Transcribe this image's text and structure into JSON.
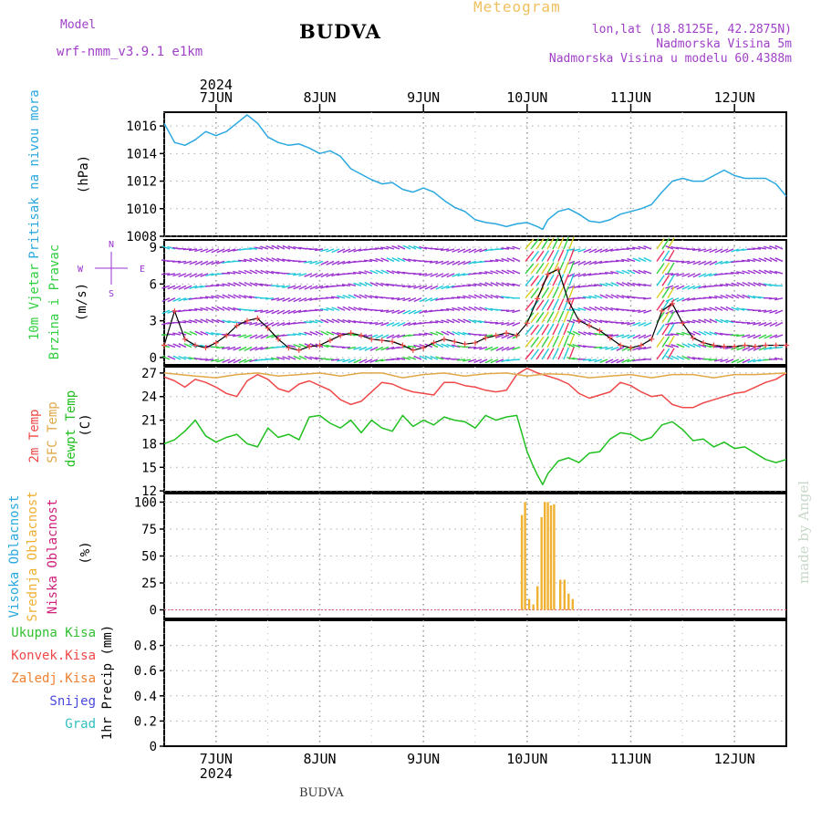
{
  "header": {
    "model_label": "Model",
    "model_name": "wrf-nmm_v3.9.1  e1km",
    "title": "BUDVA",
    "subtitle": "Meteogram",
    "location": "lon,lat (18.8125E, 42.2875N)",
    "altitude": "Nadmorska Visina 5m",
    "model_altitude": "Nadmorska Visina u modelu 60.4388m",
    "footer_title": "BUDVA",
    "credit": "made by Angel"
  },
  "colors": {
    "pressure": "#29a8e0",
    "temp2m": "#f04848",
    "sfc_temp": "#e0a848",
    "dewpoint": "#20c020",
    "cloud_bar": "#f0b030",
    "wind_purple": "#9a30d0",
    "wind_cyan": "#20c8d8",
    "wind_green": "#30d040",
    "wind_yellow": "#d8d020",
    "wind_red": "#f03060",
    "wind_line": "#000000",
    "gust_marker": "#f04848"
  },
  "chart_data": [
    {
      "type": "line",
      "panel": "pressure",
      "ylabel_lines": [
        "Pritisak na nivou mora",
        "(hPa)"
      ],
      "ylim": [
        1008,
        1017
      ],
      "yticks": [
        1008,
        1010,
        1012,
        1014,
        1016
      ],
      "xticks": [
        "7JUN",
        "8JUN",
        "9JUN",
        "10JUN",
        "11JUN",
        "12JUN"
      ],
      "xticks_year": "2024",
      "grid": true,
      "series": [
        {
          "x": [
            6.5,
            6.55,
            6.6,
            6.7,
            6.8,
            6.9,
            7.0,
            7.1,
            7.2,
            7.3,
            7.4,
            7.5,
            7.6,
            7.7,
            7.8,
            7.9,
            8.0,
            8.1,
            8.2,
            8.3,
            8.4,
            8.5,
            8.6,
            8.7,
            8.8,
            8.9,
            9.0,
            9.1,
            9.2,
            9.3,
            9.4,
            9.5,
            9.6,
            9.7,
            9.8,
            9.9,
            10.0,
            10.1,
            10.15,
            10.2,
            10.3,
            10.4,
            10.5,
            10.6,
            10.7,
            10.8,
            10.9,
            11.0,
            11.1,
            11.2,
            11.3,
            11.4,
            11.5,
            11.6,
            11.7,
            11.8,
            11.9,
            12.0,
            12.1,
            12.2,
            12.3,
            12.4,
            12.5
          ],
          "values": [
            1016.2,
            1015.5,
            1014.8,
            1014.6,
            1015.0,
            1015.6,
            1015.3,
            1015.6,
            1016.2,
            1016.8,
            1016.2,
            1015.2,
            1014.8,
            1014.6,
            1014.7,
            1014.4,
            1014.0,
            1014.2,
            1013.8,
            1012.9,
            1012.5,
            1012.1,
            1011.8,
            1011.9,
            1011.4,
            1011.2,
            1011.5,
            1011.2,
            1010.6,
            1010.1,
            1009.8,
            1009.2,
            1009.0,
            1008.9,
            1008.7,
            1008.9,
            1009.0,
            1008.7,
            1008.5,
            1009.2,
            1009.8,
            1010.0,
            1009.6,
            1009.1,
            1009.0,
            1009.2,
            1009.6,
            1009.8,
            1010.0,
            1010.3,
            1011.2,
            1012.0,
            1012.2,
            1012.0,
            1012.0,
            1012.4,
            1012.8,
            1012.4,
            1012.2,
            1012.2,
            1012.2,
            1011.8,
            1010.9
          ]
        }
      ]
    },
    {
      "type": "line",
      "panel": "wind",
      "ylabel_lines": [
        "10m Vjetar",
        "Brzina i Pravac",
        "(m/s)"
      ],
      "compass": {
        "n": "N",
        "s": "S",
        "w": "W",
        "e": "E"
      },
      "ylim": [
        0,
        9.5
      ],
      "yticks": [
        0,
        3,
        6,
        9
      ],
      "grid": true,
      "series": [
        {
          "name": "speed",
          "x": [
            6.5,
            6.6,
            6.7,
            6.8,
            6.9,
            7.0,
            7.1,
            7.2,
            7.3,
            7.4,
            7.5,
            7.6,
            7.7,
            7.8,
            7.9,
            8.0,
            8.1,
            8.2,
            8.3,
            8.4,
            8.5,
            8.6,
            8.7,
            8.8,
            8.9,
            9.0,
            9.1,
            9.2,
            9.3,
            9.4,
            9.5,
            9.6,
            9.7,
            9.8,
            9.9,
            10.0,
            10.1,
            10.2,
            10.3,
            10.4,
            10.5,
            10.6,
            10.7,
            10.8,
            10.9,
            11.0,
            11.1,
            11.2,
            11.3,
            11.4,
            11.5,
            11.6,
            11.7,
            11.8,
            11.9,
            12.0,
            12.1,
            12.2,
            12.3,
            12.4,
            12.5
          ],
          "values": [
            1.0,
            3.8,
            1.5,
            1.0,
            0.8,
            1.2,
            1.8,
            2.6,
            3.0,
            3.2,
            2.4,
            1.5,
            0.8,
            0.6,
            0.9,
            1.0,
            1.4,
            1.8,
            2.0,
            1.8,
            1.5,
            1.4,
            1.3,
            1.0,
            0.6,
            0.8,
            1.2,
            1.5,
            1.3,
            1.1,
            1.2,
            1.6,
            1.8,
            2.0,
            1.8,
            2.8,
            4.8,
            6.8,
            7.2,
            4.6,
            3.0,
            2.6,
            2.2,
            1.6,
            1.0,
            0.8,
            1.0,
            1.5,
            3.8,
            4.4,
            2.8,
            1.6,
            1.2,
            1.0,
            0.9,
            0.9,
            1.0,
            0.9,
            1.0,
            1.0,
            1.0
          ]
        }
      ]
    },
    {
      "type": "line",
      "panel": "temperature",
      "ylabel_lines": [
        "2m Temp",
        "SFC Temp",
        "dewpt Temp",
        "(C)"
      ],
      "ylim": [
        12,
        27.5
      ],
      "yticks": [
        12,
        15,
        18,
        21,
        24,
        27
      ],
      "grid": true,
      "series": [
        {
          "name": "2m Temp",
          "x": [
            6.5,
            6.6,
            6.7,
            6.8,
            6.9,
            7.0,
            7.1,
            7.2,
            7.3,
            7.4,
            7.5,
            7.6,
            7.7,
            7.8,
            7.9,
            8.0,
            8.1,
            8.2,
            8.3,
            8.4,
            8.5,
            8.6,
            8.7,
            8.8,
            8.9,
            9.0,
            9.1,
            9.2,
            9.3,
            9.4,
            9.5,
            9.6,
            9.7,
            9.8,
            9.9,
            10.0,
            10.1,
            10.2,
            10.3,
            10.4,
            10.5,
            10.6,
            10.7,
            10.8,
            10.9,
            11.0,
            11.1,
            11.2,
            11.3,
            11.4,
            11.5,
            11.6,
            11.7,
            11.8,
            11.9,
            12.0,
            12.1,
            12.2,
            12.3,
            12.4,
            12.5
          ],
          "values": [
            26.5,
            26.0,
            25.2,
            26.2,
            25.8,
            25.2,
            24.4,
            24.0,
            26.0,
            26.8,
            26.2,
            25.0,
            24.6,
            25.6,
            26.0,
            25.4,
            24.8,
            23.6,
            23.0,
            23.4,
            24.6,
            25.8,
            25.6,
            25.0,
            24.6,
            24.4,
            24.2,
            25.8,
            25.8,
            25.4,
            25.2,
            24.8,
            24.6,
            24.8,
            26.8,
            27.6,
            27.0,
            26.6,
            26.2,
            25.6,
            24.4,
            23.8,
            24.2,
            24.6,
            25.8,
            25.4,
            24.6,
            24.0,
            24.2,
            23.0,
            22.6,
            22.6,
            23.2,
            23.6,
            24.0,
            24.4,
            24.6,
            25.2,
            25.8,
            26.2,
            27.0
          ]
        },
        {
          "name": "SFC Temp",
          "x": [
            6.5,
            6.8,
            7.0,
            7.2,
            7.4,
            7.6,
            7.8,
            8.0,
            8.2,
            8.4,
            8.6,
            8.8,
            9.0,
            9.2,
            9.4,
            9.6,
            9.8,
            10.0,
            10.2,
            10.4,
            10.6,
            10.8,
            11.0,
            11.2,
            11.4,
            11.6,
            11.8,
            12.0,
            12.2,
            12.5
          ],
          "values": [
            27.0,
            26.6,
            26.4,
            26.8,
            27.0,
            26.6,
            26.8,
            27.0,
            26.6,
            27.0,
            27.0,
            26.4,
            26.8,
            27.0,
            26.6,
            26.9,
            27.0,
            26.6,
            26.9,
            26.8,
            26.4,
            26.6,
            26.8,
            26.4,
            26.8,
            26.8,
            26.4,
            26.8,
            26.8,
            27.0
          ]
        },
        {
          "name": "dewpt Temp",
          "x": [
            6.5,
            6.6,
            6.7,
            6.8,
            6.9,
            7.0,
            7.1,
            7.2,
            7.3,
            7.4,
            7.5,
            7.6,
            7.7,
            7.8,
            7.9,
            8.0,
            8.1,
            8.2,
            8.3,
            8.4,
            8.5,
            8.6,
            8.7,
            8.8,
            8.9,
            9.0,
            9.1,
            9.2,
            9.3,
            9.4,
            9.5,
            9.6,
            9.7,
            9.8,
            9.9,
            10.0,
            10.05,
            10.1,
            10.15,
            10.2,
            10.3,
            10.4,
            10.5,
            10.6,
            10.7,
            10.8,
            10.9,
            11.0,
            11.1,
            11.2,
            11.3,
            11.4,
            11.5,
            11.6,
            11.7,
            11.8,
            11.9,
            12.0,
            12.1,
            12.2,
            12.3,
            12.4,
            12.5
          ],
          "values": [
            18.0,
            18.5,
            19.6,
            21.0,
            19.0,
            18.2,
            18.8,
            19.2,
            18.0,
            17.6,
            20.0,
            18.8,
            19.2,
            18.5,
            21.4,
            21.6,
            20.6,
            20.0,
            21.0,
            19.4,
            21.0,
            20.0,
            19.6,
            21.6,
            20.2,
            21.0,
            20.4,
            21.4,
            21.0,
            20.8,
            20.0,
            21.6,
            21.0,
            21.4,
            21.6,
            17.0,
            15.4,
            14.0,
            12.8,
            14.2,
            15.8,
            16.2,
            15.6,
            16.8,
            17.0,
            18.6,
            19.4,
            19.2,
            18.4,
            18.8,
            20.4,
            20.8,
            19.8,
            18.4,
            18.6,
            17.6,
            18.2,
            17.4,
            17.6,
            16.8,
            16.0,
            15.6,
            16.0
          ]
        }
      ]
    },
    {
      "type": "bar",
      "panel": "clouds",
      "ylabel_lines": [
        "Visoka Oblacnost",
        "Srednja Oblacnost",
        "Niska Oblacnost",
        "(%)"
      ],
      "ylim": [
        -8,
        108
      ],
      "yticks": [
        0,
        25,
        50,
        75,
        100
      ],
      "grid": true,
      "series": [
        {
          "name": "Srednja Oblacnost",
          "x": [
            9.95,
            9.98,
            10.02,
            10.06,
            10.1,
            10.14,
            10.17,
            10.2,
            10.23,
            10.26,
            10.32,
            10.36,
            10.4,
            10.44
          ],
          "values": [
            88,
            100,
            10,
            5,
            22,
            86,
            100,
            100,
            97,
            98,
            28,
            28,
            15,
            10
          ]
        }
      ]
    },
    {
      "type": "line",
      "panel": "precipitation",
      "ylabel_lines": [
        "1hr Precip (mm)"
      ],
      "legend": [
        "Ukupna Kisa",
        "Konvek.Kisa",
        "Zaledj.Kisa",
        "Snijeg",
        "Grad"
      ],
      "ylim": [
        0,
        1
      ],
      "yticks": [
        "0",
        "0.2",
        "0.4",
        "0.6",
        "0.8"
      ],
      "xticks": [
        "7JUN",
        "8JUN",
        "9JUN",
        "10JUN",
        "11JUN",
        "12JUN"
      ],
      "xticks_year": "2024",
      "grid": true,
      "series": [
        {
          "name": "Ukupna Kisa",
          "x": [
            6.5,
            12.5
          ],
          "values": [
            0,
            0
          ]
        }
      ]
    }
  ]
}
